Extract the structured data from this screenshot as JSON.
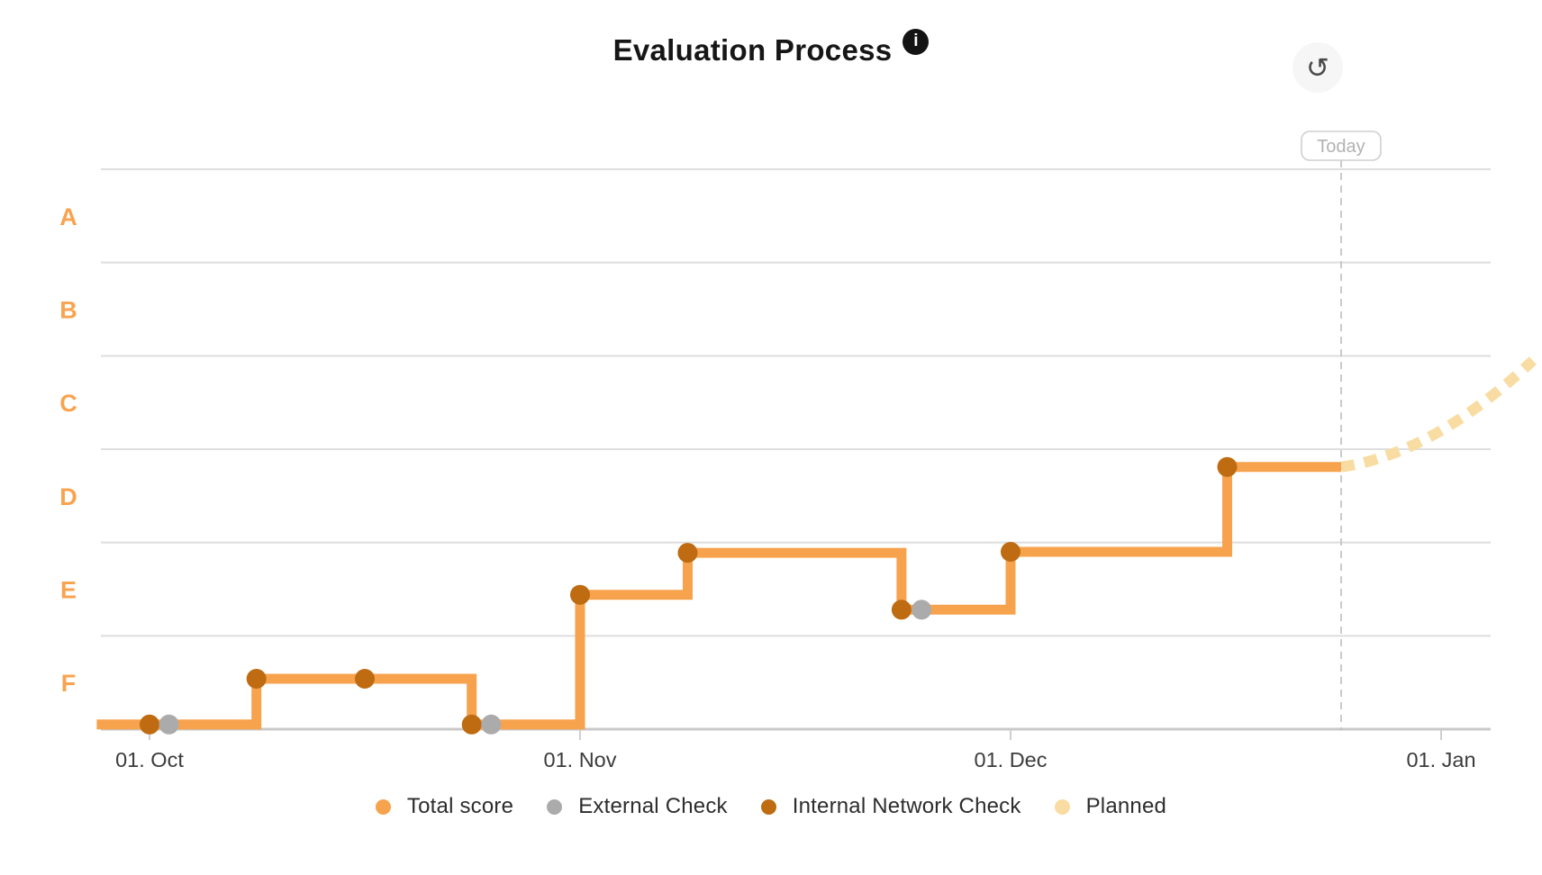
{
  "header": {
    "title": "Evaluation Process",
    "info_icon": "i",
    "reset_icon": "↺"
  },
  "today": {
    "label": "Today"
  },
  "legend": {
    "items": [
      {
        "label": "Total score",
        "color": "#F7A24D"
      },
      {
        "label": "External Check",
        "color": "#ABABAB"
      },
      {
        "label": "Internal Network Check",
        "color": "#BE6B11"
      },
      {
        "label": "Planned",
        "color": "#F8DCA2"
      }
    ]
  },
  "chart_data": {
    "type": "line",
    "subtype": "step-after",
    "title": "Evaluation Process",
    "grid": true,
    "legend_position": "bottom",
    "y_axis": {
      "labels": [
        "A",
        "B",
        "C",
        "D",
        "E",
        "F"
      ],
      "label_color": "#F9A34F",
      "range": [
        0,
        6
      ],
      "note": "score scale: bottom axis = 0, each grade band = 1 unit (F band 0-1 ... A band 5-6), A at top"
    },
    "x_axis": {
      "tick_labels": [
        "01. Oct",
        "01. Nov",
        "01. Dec",
        "01. Jan"
      ],
      "tick_days": [
        0,
        31,
        61,
        92
      ]
    },
    "today_day": 84.8,
    "series": [
      {
        "name": "Total score",
        "style": "step-after",
        "color": "#F7A24D",
        "points": [
          {
            "day": -3.8,
            "approx_date": "(chart start)",
            "score": 0.05
          },
          {
            "day": 7.7,
            "approx_date": "Oct 09",
            "score": 0.54
          },
          {
            "day": 23.2,
            "approx_date": "Oct 24",
            "score": 0.05
          },
          {
            "day": 31,
            "approx_date": "Nov 01",
            "score": 1.44
          },
          {
            "day": 38.5,
            "approx_date": "Nov 09",
            "score": 1.89
          },
          {
            "day": 53.4,
            "approx_date": "Nov 23",
            "score": 1.28
          },
          {
            "day": 61,
            "approx_date": "Dec 01",
            "score": 1.9
          },
          {
            "day": 76.6,
            "approx_date": "Dec 17",
            "score": 2.81
          },
          {
            "day": 84.8,
            "approx_date": "Today (~Dec 25)",
            "score": 2.81
          }
        ]
      },
      {
        "name": "Internal Network Check",
        "style": "scatter",
        "color": "#BE6B11",
        "points": [
          {
            "day": 0,
            "approx_date": "Oct 01",
            "score": 0.05
          },
          {
            "day": 7.7,
            "approx_date": "Oct 09",
            "score": 0.54
          },
          {
            "day": 15.5,
            "approx_date": "Oct 17",
            "score": 0.54
          },
          {
            "day": 23.2,
            "approx_date": "Oct 24",
            "score": 0.05
          },
          {
            "day": 31,
            "approx_date": "Nov 01",
            "score": 1.44
          },
          {
            "day": 38.5,
            "approx_date": "Nov 09",
            "score": 1.89
          },
          {
            "day": 53.4,
            "approx_date": "Nov 23",
            "score": 1.28
          },
          {
            "day": 61,
            "approx_date": "Dec 01",
            "score": 1.9
          },
          {
            "day": 76.6,
            "approx_date": "Dec 17",
            "score": 2.81
          }
        ]
      },
      {
        "name": "External Check",
        "style": "scatter",
        "color": "#ABABAB",
        "points": [
          {
            "day": 1.4,
            "approx_date": "Oct 02",
            "score": 0.05
          },
          {
            "day": 24.6,
            "approx_date": "Oct 26",
            "score": 0.05
          },
          {
            "day": 54.8,
            "approx_date": "Nov 25",
            "score": 1.28
          }
        ]
      },
      {
        "name": "Planned",
        "style": "dashed-projection",
        "color": "#F8DCA2",
        "points": [
          {
            "day": 84.8,
            "approx_date": "Today (~Dec 25)",
            "score": 2.81
          },
          {
            "day": 98.6,
            "approx_date": "~Jan 08",
            "score": 3.95
          }
        ]
      }
    ]
  }
}
